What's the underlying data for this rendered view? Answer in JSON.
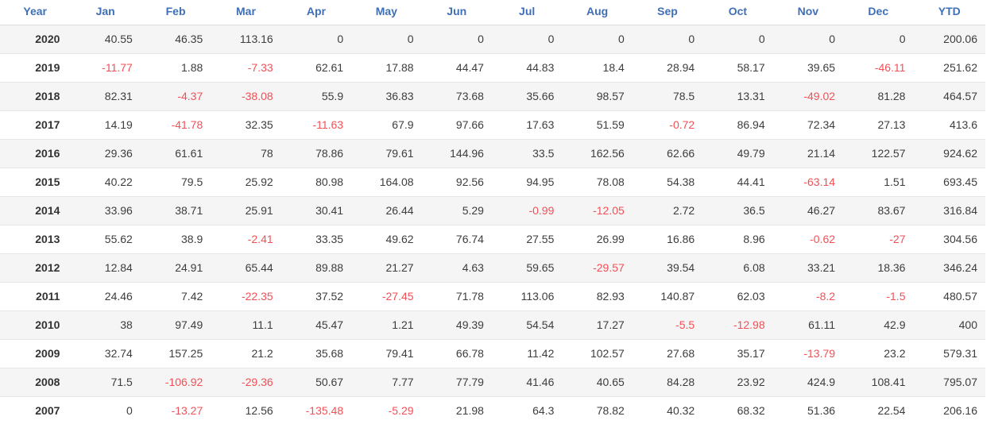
{
  "colors": {
    "header_text": "#3f6fb7",
    "negative_value": "#f25056",
    "value_text": "#3d3d3d",
    "year_text": "#333333",
    "alt_row_background": "#f5f5f5",
    "row_border": "#e6e6e6"
  },
  "chart_data": {
    "type": "table",
    "columns": [
      "Year",
      "Jan",
      "Feb",
      "Mar",
      "Apr",
      "May",
      "Jun",
      "Jul",
      "Aug",
      "Sep",
      "Oct",
      "Nov",
      "Dec",
      "YTD"
    ],
    "rows": [
      {
        "year": "2020",
        "cells": [
          "40.55",
          "46.35",
          "113.16",
          "0",
          "0",
          "0",
          "0",
          "0",
          "0",
          "0",
          "0",
          "0",
          "200.06"
        ]
      },
      {
        "year": "2019",
        "cells": [
          "-11.77",
          "1.88",
          "-7.33",
          "62.61",
          "17.88",
          "44.47",
          "44.83",
          "18.4",
          "28.94",
          "58.17",
          "39.65",
          "-46.11",
          "251.62"
        ]
      },
      {
        "year": "2018",
        "cells": [
          "82.31",
          "-4.37",
          "-38.08",
          "55.9",
          "36.83",
          "73.68",
          "35.66",
          "98.57",
          "78.5",
          "13.31",
          "-49.02",
          "81.28",
          "464.57"
        ]
      },
      {
        "year": "2017",
        "cells": [
          "14.19",
          "-41.78",
          "32.35",
          "-11.63",
          "67.9",
          "97.66",
          "17.63",
          "51.59",
          "-0.72",
          "86.94",
          "72.34",
          "27.13",
          "413.6"
        ]
      },
      {
        "year": "2016",
        "cells": [
          "29.36",
          "61.61",
          "78",
          "78.86",
          "79.61",
          "144.96",
          "33.5",
          "162.56",
          "62.66",
          "49.79",
          "21.14",
          "122.57",
          "924.62"
        ]
      },
      {
        "year": "2015",
        "cells": [
          "40.22",
          "79.5",
          "25.92",
          "80.98",
          "164.08",
          "92.56",
          "94.95",
          "78.08",
          "54.38",
          "44.41",
          "-63.14",
          "1.51",
          "693.45"
        ]
      },
      {
        "year": "2014",
        "cells": [
          "33.96",
          "38.71",
          "25.91",
          "30.41",
          "26.44",
          "5.29",
          "-0.99",
          "-12.05",
          "2.72",
          "36.5",
          "46.27",
          "83.67",
          "316.84"
        ]
      },
      {
        "year": "2013",
        "cells": [
          "55.62",
          "38.9",
          "-2.41",
          "33.35",
          "49.62",
          "76.74",
          "27.55",
          "26.99",
          "16.86",
          "8.96",
          "-0.62",
          "-27",
          "304.56"
        ]
      },
      {
        "year": "2012",
        "cells": [
          "12.84",
          "24.91",
          "65.44",
          "89.88",
          "21.27",
          "4.63",
          "59.65",
          "-29.57",
          "39.54",
          "6.08",
          "33.21",
          "18.36",
          "346.24"
        ]
      },
      {
        "year": "2011",
        "cells": [
          "24.46",
          "7.42",
          "-22.35",
          "37.52",
          "-27.45",
          "71.78",
          "113.06",
          "82.93",
          "140.87",
          "62.03",
          "-8.2",
          "-1.5",
          "480.57"
        ]
      },
      {
        "year": "2010",
        "cells": [
          "38",
          "97.49",
          "11.1",
          "45.47",
          "1.21",
          "49.39",
          "54.54",
          "17.27",
          "-5.5",
          "-12.98",
          "61.11",
          "42.9",
          "400"
        ]
      },
      {
        "year": "2009",
        "cells": [
          "32.74",
          "157.25",
          "21.2",
          "35.68",
          "79.41",
          "66.78",
          "11.42",
          "102.57",
          "27.68",
          "35.17",
          "-13.79",
          "23.2",
          "579.31"
        ]
      },
      {
        "year": "2008",
        "cells": [
          "71.5",
          "-106.92",
          "-29.36",
          "50.67",
          "7.77",
          "77.79",
          "41.46",
          "40.65",
          "84.28",
          "23.92",
          "424.9",
          "108.41",
          "795.07"
        ]
      },
      {
        "year": "2007",
        "cells": [
          "0",
          "-13.27",
          "12.56",
          "-135.48",
          "-5.29",
          "21.98",
          "64.3",
          "78.82",
          "40.32",
          "68.32",
          "51.36",
          "22.54",
          "206.16"
        ]
      }
    ]
  }
}
